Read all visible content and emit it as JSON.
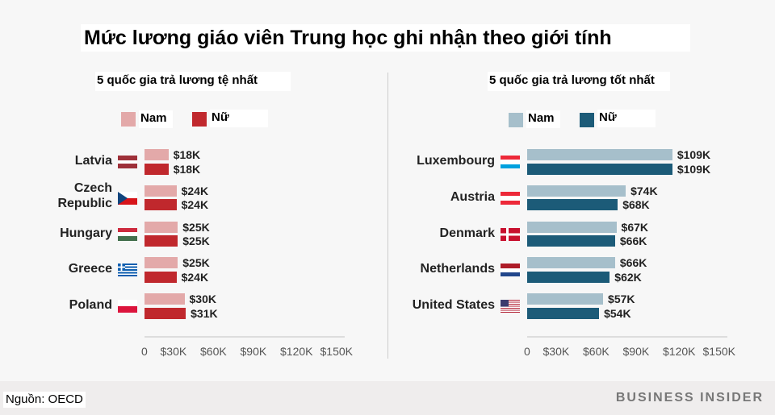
{
  "title": "Mức lương giáo viên Trung học ghi nhận theo giới tính",
  "source": "Nguồn: OECD",
  "brand": "BUSINESS INSIDER",
  "chart_data": [
    {
      "type": "bar",
      "orientation": "horizontal",
      "title": "5 quốc gia trả lương tệ nhất",
      "categories": [
        "Latvia",
        "Czech Republic",
        "Hungary",
        "Greece",
        "Poland"
      ],
      "series": [
        {
          "name": "Nam",
          "color": "#e3a9a9",
          "values": [
            18,
            24,
            25,
            25,
            30
          ],
          "labels": [
            "$18K",
            "$24K",
            "$25K",
            "$25K",
            "$30K"
          ]
        },
        {
          "name": "Nữ",
          "color": "#c0282d",
          "values": [
            18,
            24,
            25,
            24,
            31
          ],
          "labels": [
            "$18K",
            "$24K",
            "$25K",
            "$24K",
            "$31K"
          ]
        }
      ],
      "xlim": [
        0,
        150
      ],
      "xticks": [
        "0",
        "$30K",
        "$60K",
        "$90K",
        "$120K",
        "$150K"
      ],
      "legend": "top",
      "grid": false
    },
    {
      "type": "bar",
      "orientation": "horizontal",
      "title": "5 quốc gia trả lương tốt nhất",
      "categories": [
        "Luxembourg",
        "Austria",
        "Denmark",
        "Netherlands",
        "United States"
      ],
      "series": [
        {
          "name": "Nam",
          "color": "#a6bfcb",
          "values": [
            109,
            74,
            67,
            66,
            57
          ],
          "labels": [
            "$109K",
            "$74K",
            "$67K",
            "$66K",
            "$57K"
          ]
        },
        {
          "name": "Nữ",
          "color": "#1c5b78",
          "values": [
            109,
            68,
            66,
            62,
            54
          ],
          "labels": [
            "$109K",
            "$68K",
            "$66K",
            "$62K",
            "$54K"
          ]
        }
      ],
      "xlim": [
        0,
        150
      ],
      "xticks": [
        "0",
        "$30K",
        "$60K",
        "$90K",
        "$120K",
        "$150K"
      ],
      "legend": "top",
      "grid": false
    }
  ]
}
